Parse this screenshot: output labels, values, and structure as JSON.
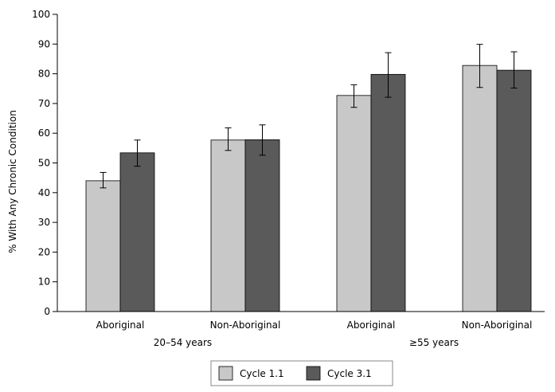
{
  "chart_data": {
    "type": "bar",
    "title": "",
    "xlabel": "",
    "ylabel": "% With Any Chronic Condition",
    "ylim": [
      0,
      100
    ],
    "yticks": [
      0,
      10,
      20,
      30,
      40,
      50,
      60,
      70,
      80,
      90,
      100
    ],
    "grid": false,
    "legend_position": "bottom-center",
    "categories": [
      "Aboriginal",
      "Non-Aboriginal",
      "Aboriginal",
      "Non-Aboriginal"
    ],
    "groups": [
      {
        "label": "20–54 years",
        "categories": [
          0,
          1
        ]
      },
      {
        "label": "≥55 years",
        "categories": [
          2,
          3
        ]
      }
    ],
    "series": [
      {
        "name": "Cycle 1.1",
        "color": "#c8c8c8",
        "values": [
          44,
          57.7,
          72.7,
          82.8
        ],
        "error_low": [
          41.6,
          54.2,
          68.7,
          75.4
        ],
        "error_high": [
          46.8,
          61.8,
          76.3,
          89.9
        ]
      },
      {
        "name": "Cycle 3.1",
        "color": "#5a5a5a",
        "values": [
          53.4,
          57.8,
          79.8,
          81.2
        ],
        "error_low": [
          48.9,
          52.6,
          72.1,
          75.2
        ],
        "error_high": [
          57.7,
          62.8,
          87.1,
          87.4
        ]
      }
    ]
  }
}
